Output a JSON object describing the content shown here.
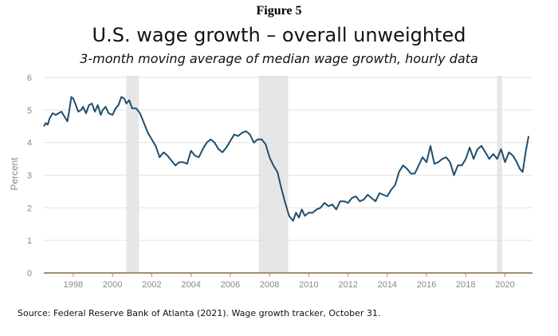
{
  "figure_label": "Figure 5",
  "source": "Source: Federal Reserve Bank of Atlanta (2021). Wage growth tracker, October 31.",
  "colors": {
    "line": "#1f4e6e",
    "recession": "#e6e6e6",
    "grid": "#e3e3e3",
    "axis": "#a08d78"
  },
  "chart_data": {
    "type": "line",
    "title": "U.S. wage growth – overall unweighted",
    "subtitle": "3-month moving average of median wage growth, hourly data",
    "xlabel": "",
    "ylabel": "Percent",
    "xlim": [
      1997.0,
      2021.9
    ],
    "ylim": [
      0,
      6
    ],
    "yticks": [
      "0",
      "1",
      "2",
      "3",
      "4",
      "5",
      "6"
    ],
    "xticks": [
      "1998",
      "2000",
      "2002",
      "2004",
      "2006",
      "2008",
      "2010",
      "2012",
      "2014",
      "2016",
      "2018",
      "2020"
    ],
    "grid": true,
    "recession_bands": [
      [
        2001.2,
        2001.85
      ],
      [
        2007.95,
        2009.45
      ],
      [
        2020.1,
        2020.35
      ]
    ],
    "series": [
      {
        "name": "Overall unweighted",
        "x": [
          1997.0,
          1997.1,
          1997.2,
          1997.3,
          1997.45,
          1997.6,
          1997.75,
          1997.9,
          1998.05,
          1998.2,
          1998.3,
          1998.4,
          1998.5,
          1998.6,
          1998.75,
          1998.9,
          1999.0,
          1999.15,
          1999.3,
          1999.45,
          1999.6,
          1999.75,
          1999.9,
          2000.0,
          2000.15,
          2000.3,
          2000.5,
          2000.65,
          2000.8,
          2000.95,
          2001.1,
          2001.2,
          2001.35,
          2001.5,
          2001.7,
          2001.9,
          2002.1,
          2002.3,
          2002.5,
          2002.7,
          2002.9,
          2003.1,
          2003.3,
          2003.5,
          2003.7,
          2003.9,
          2004.1,
          2004.3,
          2004.5,
          2004.7,
          2004.9,
          2005.1,
          2005.3,
          2005.5,
          2005.7,
          2005.9,
          2006.1,
          2006.3,
          2006.5,
          2006.7,
          2006.9,
          2007.1,
          2007.3,
          2007.5,
          2007.7,
          2007.9,
          2008.1,
          2008.3,
          2008.5,
          2008.7,
          2008.9,
          2009.1,
          2009.3,
          2009.5,
          2009.7,
          2009.85,
          2010.0,
          2010.15,
          2010.3,
          2010.5,
          2010.7,
          2010.9,
          2011.1,
          2011.3,
          2011.5,
          2011.7,
          2011.9,
          2012.1,
          2012.3,
          2012.5,
          2012.7,
          2012.9,
          2013.1,
          2013.3,
          2013.5,
          2013.7,
          2013.9,
          2014.1,
          2014.3,
          2014.5,
          2014.7,
          2014.9,
          2015.1,
          2015.3,
          2015.5,
          2015.7,
          2015.9,
          2016.1,
          2016.3,
          2016.5,
          2016.7,
          2016.9,
          2017.1,
          2017.3,
          2017.5,
          2017.7,
          2017.9,
          2018.1,
          2018.3,
          2018.5,
          2018.7,
          2018.9,
          2019.1,
          2019.3,
          2019.5,
          2019.7,
          2019.9,
          2020.1,
          2020.3,
          2020.5,
          2020.7,
          2020.9,
          2021.1,
          2021.25,
          2021.4,
          2021.55,
          2021.7
        ],
        "values": [
          4.5,
          4.6,
          4.55,
          4.75,
          4.9,
          4.85,
          4.9,
          4.95,
          4.8,
          4.65,
          5.0,
          5.4,
          5.35,
          5.2,
          4.95,
          5.0,
          5.1,
          4.9,
          5.15,
          5.2,
          4.95,
          5.15,
          4.85,
          5.0,
          5.1,
          4.9,
          4.85,
          5.05,
          5.15,
          5.4,
          5.35,
          5.2,
          5.3,
          5.05,
          5.05,
          4.9,
          4.6,
          4.3,
          4.1,
          3.9,
          3.55,
          3.7,
          3.6,
          3.45,
          3.3,
          3.4,
          3.4,
          3.35,
          3.75,
          3.6,
          3.55,
          3.8,
          4.0,
          4.1,
          4.0,
          3.8,
          3.7,
          3.85,
          4.05,
          4.25,
          4.2,
          4.3,
          4.35,
          4.25,
          4.0,
          4.1,
          4.1,
          3.95,
          3.55,
          3.3,
          3.1,
          2.6,
          2.15,
          1.75,
          1.6,
          1.85,
          1.7,
          1.95,
          1.75,
          1.85,
          1.85,
          1.95,
          2.0,
          2.15,
          2.05,
          2.1,
          1.95,
          2.2,
          2.2,
          2.15,
          2.3,
          2.35,
          2.2,
          2.25,
          2.4,
          2.3,
          2.2,
          2.45,
          2.4,
          2.35,
          2.55,
          2.7,
          3.1,
          3.3,
          3.2,
          3.05,
          3.05,
          3.3,
          3.55,
          3.4,
          3.9,
          3.35,
          3.4,
          3.5,
          3.55,
          3.4,
          3.0,
          3.3,
          3.3,
          3.5,
          3.85,
          3.5,
          3.8,
          3.9,
          3.7,
          3.5,
          3.65,
          3.5,
          3.8,
          3.4,
          3.7,
          3.6,
          3.4,
          3.2,
          3.1,
          3.7,
          4.2
        ]
      }
    ]
  }
}
